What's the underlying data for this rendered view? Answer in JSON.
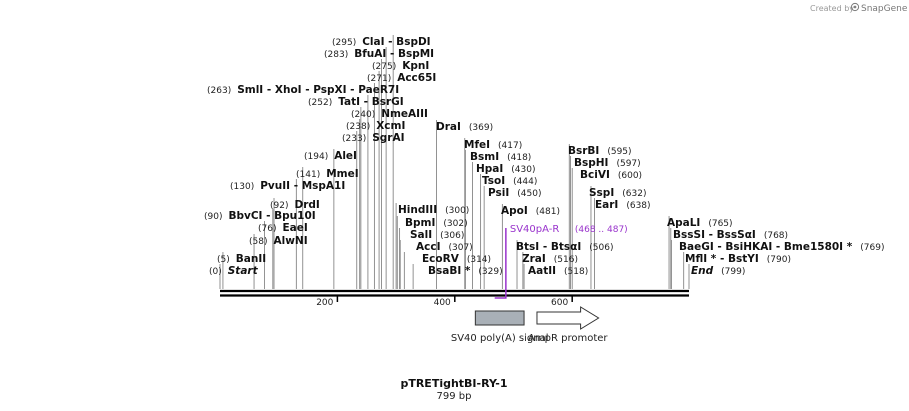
{
  "credit": {
    "created_by": "Created by",
    "brand": "SnapGene"
  },
  "plasmid": {
    "name": "pTRETightBI-RY-1",
    "size_label": "799 bp"
  },
  "axis": {
    "start": 0,
    "end": 799,
    "ticks": [
      200,
      400,
      600
    ]
  },
  "enzymes": [
    {
      "name": "Start",
      "pos_label": "(0)",
      "italic": true,
      "coord": 0
    },
    {
      "name": "BanII",
      "pos_label": "(5)",
      "coord": 5
    },
    {
      "name": "AlwNI",
      "pos_label": "(58)",
      "coord": 58
    },
    {
      "name": "EaeI",
      "pos_label": "(76)",
      "coord": 76
    },
    {
      "name": "BbvCI",
      "pos_label": "(90)",
      "coord": 90,
      "suffix": " - Bpu10I"
    },
    {
      "name": "DrdI",
      "pos_label": "(92)",
      "coord": 92
    },
    {
      "name": "PvuII",
      "pos_label": "(130)",
      "coord": 130,
      "suffix": " - MspA1I"
    },
    {
      "name": "MmeI",
      "pos_label": "(141)",
      "coord": 141
    },
    {
      "name": "AleI",
      "pos_label": "(194)",
      "coord": 194
    },
    {
      "name": "SgrAI",
      "pos_label": "(233)",
      "coord": 233
    },
    {
      "name": "XcmI",
      "pos_label": "(238)",
      "coord": 238
    },
    {
      "name": "NmeAIII",
      "pos_label": "(240)",
      "coord": 240
    },
    {
      "name": "TatI",
      "pos_label": "(252)",
      "coord": 252,
      "suffix": " - BsrGI"
    },
    {
      "name": "SmlI",
      "pos_label": "(263)",
      "coord": 263,
      "suffix": " - XhoI - PspXI - PaeR7I"
    },
    {
      "name": "Acc65I",
      "pos_label": "(271)",
      "coord": 271
    },
    {
      "name": "KpnI",
      "pos_label": "(275)",
      "coord": 275
    },
    {
      "name": "BfuAI",
      "pos_label": "(283)",
      "coord": 283,
      "suffix": " - BspMI"
    },
    {
      "name": "ClaI",
      "pos_label": "(295)",
      "coord": 295,
      "suffix": " - BspDI"
    },
    {
      "name": "HindIII",
      "pos_label": "(300)",
      "coord": 300,
      "pos_right": true
    },
    {
      "name": "BpmI",
      "pos_label": "(302)",
      "coord": 302,
      "pos_right": true
    },
    {
      "name": "SalI",
      "pos_label": "(306)",
      "coord": 306,
      "pos_right": true
    },
    {
      "name": "AccI",
      "pos_label": "(307)",
      "coord": 307,
      "pos_right": true
    },
    {
      "name": "EcoRV",
      "pos_label": "(314)",
      "coord": 314,
      "pos_right": true
    },
    {
      "name": "BsaBI *",
      "pos_label": "(329)",
      "coord": 329,
      "pos_right": true
    },
    {
      "name": "DraI",
      "pos_label": "(369)",
      "coord": 369,
      "pos_right": true
    },
    {
      "name": "MfeI",
      "pos_label": "(417)",
      "coord": 417,
      "pos_right": true
    },
    {
      "name": "BsmI",
      "pos_label": "(418)",
      "coord": 418,
      "pos_right": true
    },
    {
      "name": "HpaI",
      "pos_label": "(430)",
      "coord": 430,
      "pos_right": true
    },
    {
      "name": "TsoI",
      "pos_label": "(444)",
      "coord": 444,
      "pos_right": true
    },
    {
      "name": "PsiI",
      "pos_label": "(450)",
      "coord": 450,
      "pos_right": true
    },
    {
      "name": "ApoI",
      "pos_label": "(481)",
      "coord": 481,
      "pos_right": true
    },
    {
      "name": "BtsI",
      "pos_label": "(506)",
      "coord": 506,
      "pos_right": true,
      "suffix": " - BtsαI"
    },
    {
      "name": "ZraI",
      "pos_label": "(516)",
      "coord": 516,
      "pos_right": true
    },
    {
      "name": "AatII",
      "pos_label": "(518)",
      "coord": 518,
      "pos_right": true
    },
    {
      "name": "BsrBI",
      "pos_label": "(595)",
      "coord": 595,
      "pos_right": true
    },
    {
      "name": "BspHI",
      "pos_label": "(597)",
      "coord": 597,
      "pos_right": true
    },
    {
      "name": "BciVI",
      "pos_label": "(600)",
      "coord": 600,
      "pos_right": true
    },
    {
      "name": "SspI",
      "pos_label": "(632)",
      "coord": 632,
      "pos_right": true
    },
    {
      "name": "EarI",
      "pos_label": "(638)",
      "coord": 638,
      "pos_right": true
    },
    {
      "name": "ApaLI",
      "pos_label": "(765)",
      "coord": 765,
      "pos_right": true
    },
    {
      "name": "BssSI",
      "pos_label": "(768)",
      "coord": 768,
      "pos_right": true,
      "suffix": " - BssSαI"
    },
    {
      "name": "BaeGI",
      "pos_label": "(769)",
      "coord": 769,
      "pos_right": true,
      "suffix": " - BsiHKAI - Bme1580I *"
    },
    {
      "name": "MflI *",
      "pos_label": "(790)",
      "coord": 790,
      "pos_right": true,
      "suffix": " - BstYI"
    },
    {
      "name": "End",
      "pos_label": "(799)",
      "italic": true,
      "coord": 799,
      "pos_right": true
    }
  ],
  "primer": {
    "name": "SV40pA-R",
    "range_label": "(468 .. 487)",
    "start": 468,
    "end": 487,
    "color": "#9933cc"
  },
  "features": [
    {
      "name": "SV40 poly(A) signal",
      "start": 435,
      "end": 518,
      "shape": "box",
      "color": "#a9b0b7"
    },
    {
      "name": "AmpR promoter",
      "start": 540,
      "end": 645,
      "shape": "arrow",
      "color": "#ffffff"
    }
  ]
}
